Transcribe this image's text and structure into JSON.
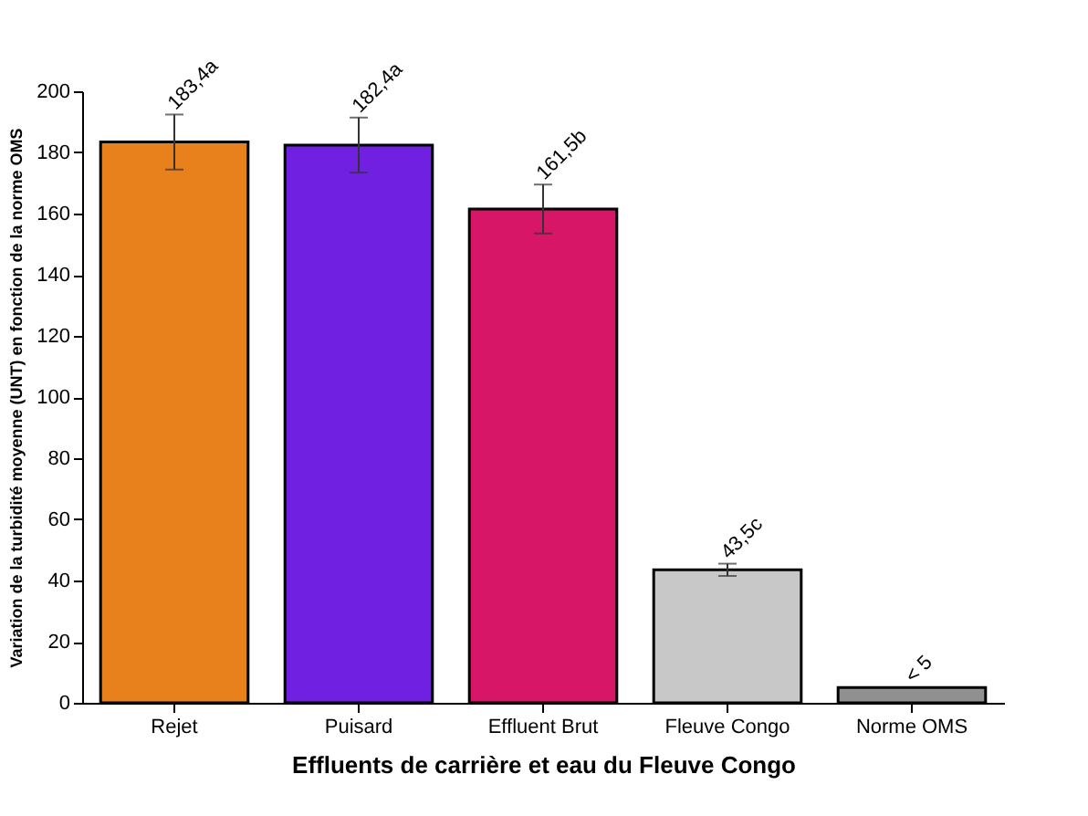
{
  "chart_data": {
    "type": "bar",
    "xlabel": "Effluents de carrière et eau du Fleuve Congo",
    "ylabel": "Variation de la turbidité moyenne (UNT) en fonction de la norme OMS",
    "categories": [
      "Rejet",
      "Puisard",
      "Effluent Brut",
      "Fleuve Congo",
      "Norme OMS"
    ],
    "values": [
      183.4,
      182.4,
      161.5,
      43.5,
      5
    ],
    "colors": [
      "#e8801c",
      "#7020e0",
      "#d81668",
      "#c8c8c8",
      "#909090"
    ],
    "errors": [
      9,
      9,
      8,
      2,
      null
    ],
    "value_labels": [
      "183,4a",
      "182,4a",
      "161,5b",
      "43,5c",
      "< 5"
    ],
    "ylim": [
      0,
      200
    ],
    "yticks": [
      0,
      20,
      40,
      60,
      80,
      100,
      120,
      140,
      160,
      180,
      200
    ],
    "grid": false,
    "legend": false
  }
}
